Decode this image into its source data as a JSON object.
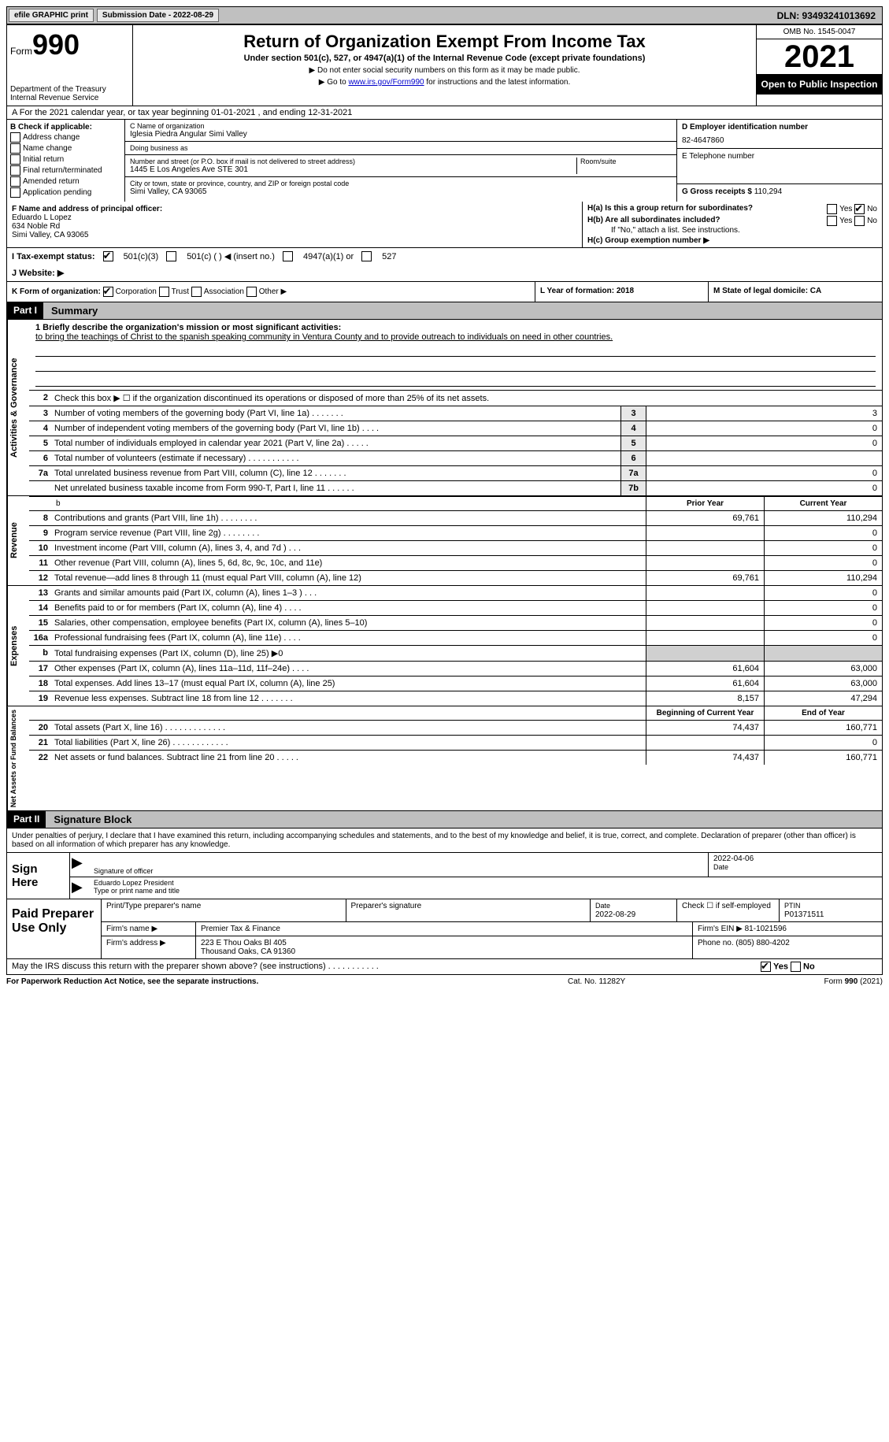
{
  "topbar": {
    "efile": "efile GRAPHIC print",
    "sub_date_label": "Submission Date - 2022-08-29",
    "dln": "DLN: 93493241013692"
  },
  "header": {
    "form_label": "Form",
    "form_no": "990",
    "dept": "Department of the Treasury Internal Revenue Service",
    "title": "Return of Organization Exempt From Income Tax",
    "subtitle": "Under section 501(c), 527, or 4947(a)(1) of the Internal Revenue Code (except private foundations)",
    "note1": "▶ Do not enter social security numbers on this form as it may be made public.",
    "note2_pre": "▶ Go to ",
    "note2_link": "www.irs.gov/Form990",
    "note2_post": " for instructions and the latest information.",
    "omb": "OMB No. 1545-0047",
    "year": "2021",
    "open": "Open to Public Inspection"
  },
  "rowA": "A For the 2021 calendar year, or tax year beginning 01-01-2021    , and ending 12-31-2021",
  "colB": {
    "title": "B Check if applicable:",
    "items": [
      "Address change",
      "Name change",
      "Initial return",
      "Final return/terminated",
      "Amended return",
      "Application pending"
    ]
  },
  "colC": {
    "name_label": "C Name of organization",
    "name": "Iglesia Piedra Angular Simi Valley",
    "dba_label": "Doing business as",
    "dba": "",
    "addr_label": "Number and street (or P.O. box if mail is not delivered to street address)",
    "room_label": "Room/suite",
    "addr": "1445 E Los Angeles Ave STE 301",
    "city_label": "City or town, state or province, country, and ZIP or foreign postal code",
    "city": "Simi Valley, CA  93065"
  },
  "colD": {
    "ein_label": "D Employer identification number",
    "ein": "82-4647860",
    "tel_label": "E Telephone number",
    "tel": "",
    "gross_label": "G Gross receipts $",
    "gross": "110,294"
  },
  "rowF": {
    "label": "F Name and address of principal officer:",
    "name": "Eduardo L Lopez",
    "addr1": "634 Noble Rd",
    "addr2": "Simi Valley, CA  93065",
    "ha": "H(a)  Is this a group return for subordinates?",
    "ha_yes": "Yes",
    "ha_no": "No",
    "hb": "H(b)  Are all subordinates included?",
    "hb_note": "If \"No,\" attach a list. See instructions.",
    "hc": "H(c)  Group exemption number ▶"
  },
  "rowI": {
    "label": "I  Tax-exempt status:",
    "opt1": "501(c)(3)",
    "opt2": "501(c) (  ) ◀ (insert no.)",
    "opt3": "4947(a)(1) or",
    "opt4": "527",
    "j": "J  Website: ▶"
  },
  "rowK": {
    "k": "K Form of organization:",
    "opts": [
      "Corporation",
      "Trust",
      "Association",
      "Other ▶"
    ],
    "l": "L Year of formation: 2018",
    "m": "M State of legal domicile: CA"
  },
  "parts": {
    "p1": "Part I",
    "p1_title": "Summary",
    "p2": "Part II",
    "p2_title": "Signature Block"
  },
  "briefly": {
    "label": "1  Briefly describe the organization's mission or most significant activities:",
    "text": "to bring the teachings of Christ to the spanish speaking community in Ventura County and to provide outreach to individuals on need in other countries."
  },
  "sections": {
    "ag": "Activities & Governance",
    "rev": "Revenue",
    "exp": "Expenses",
    "nab": "Net Assets or Fund Balances"
  },
  "ag_lines": [
    {
      "n": "2",
      "d": "Check this box ▶ ☐  if the organization discontinued its operations or disposed of more than 25% of its net assets."
    },
    {
      "n": "3",
      "d": "Number of voting members of the governing body (Part VI, line 1a)  .    .    .    .    .    .    .",
      "box": "3",
      "v": "3"
    },
    {
      "n": "4",
      "d": "Number of independent voting members of the governing body (Part VI, line 1b)   .    .    .    .",
      "box": "4",
      "v": "0"
    },
    {
      "n": "5",
      "d": "Total number of individuals employed in calendar year 2021 (Part V, line 2a)   .    .    .    .    .",
      "box": "5",
      "v": "0"
    },
    {
      "n": "6",
      "d": "Total number of volunteers (estimate if necessary)    .    .    .    .    .    .    .    .    .    .    .",
      "box": "6",
      "v": ""
    },
    {
      "n": "7a",
      "d": "Total unrelated business revenue from Part VIII, column (C), line 12   .    .    .    .    .    .    .",
      "box": "7a",
      "v": "0"
    },
    {
      "n": "",
      "d": "Net unrelated business taxable income from Form 990-T, Part I, line 11   .    .    .    .    .    .",
      "box": "7b",
      "v": "0"
    }
  ],
  "colhdr": {
    "py": "Prior Year",
    "cy": "Current Year"
  },
  "rev_lines": [
    {
      "n": "8",
      "d": "Contributions and grants (Part VIII, line 1h)   .    .    .    .    .    .    .    .",
      "py": "69,761",
      "cy": "110,294"
    },
    {
      "n": "9",
      "d": "Program service revenue (Part VIII, line 2g)   .    .    .    .    .    .    .    .",
      "py": "",
      "cy": "0"
    },
    {
      "n": "10",
      "d": "Investment income (Part VIII, column (A), lines 3, 4, and 7d )   .    .    .",
      "py": "",
      "cy": "0"
    },
    {
      "n": "11",
      "d": "Other revenue (Part VIII, column (A), lines 5, 6d, 8c, 9c, 10c, and 11e)",
      "py": "",
      "cy": "0"
    },
    {
      "n": "12",
      "d": "Total revenue—add lines 8 through 11 (must equal Part VIII, column (A), line 12)",
      "py": "69,761",
      "cy": "110,294"
    }
  ],
  "exp_lines": [
    {
      "n": "13",
      "d": "Grants and similar amounts paid (Part IX, column (A), lines 1–3 )   .    .    .",
      "py": "",
      "cy": "0"
    },
    {
      "n": "14",
      "d": "Benefits paid to or for members (Part IX, column (A), line 4)   .    .    .    .",
      "py": "",
      "cy": "0"
    },
    {
      "n": "15",
      "d": "Salaries, other compensation, employee benefits (Part IX, column (A), lines 5–10)",
      "py": "",
      "cy": "0"
    },
    {
      "n": "16a",
      "d": "Professional fundraising fees (Part IX, column (A), line 11e)   .    .    .    .",
      "py": "",
      "cy": "0"
    },
    {
      "n": "b",
      "d": "Total fundraising expenses (Part IX, column (D), line 25) ▶0",
      "gray": true
    },
    {
      "n": "17",
      "d": "Other expenses (Part IX, column (A), lines 11a–11d, 11f–24e)   .    .    .    .",
      "py": "61,604",
      "cy": "63,000"
    },
    {
      "n": "18",
      "d": "Total expenses. Add lines 13–17 (must equal Part IX, column (A), line 25)",
      "py": "61,604",
      "cy": "63,000"
    },
    {
      "n": "19",
      "d": "Revenue less expenses. Subtract line 18 from line 12   .    .    .    .    .    .    .",
      "py": "8,157",
      "cy": "47,294"
    }
  ],
  "colhdr2": {
    "py": "Beginning of Current Year",
    "cy": "End of Year"
  },
  "nab_lines": [
    {
      "n": "20",
      "d": "Total assets (Part X, line 16)   .    .    .    .    .    .    .    .    .    .    .    .    .",
      "py": "74,437",
      "cy": "160,771"
    },
    {
      "n": "21",
      "d": "Total liabilities (Part X, line 26)   .    .    .    .    .    .    .    .    .    .    .    .",
      "py": "",
      "cy": "0"
    },
    {
      "n": "22",
      "d": "Net assets or fund balances. Subtract line 21 from line 20   .    .    .    .    .",
      "py": "74,437",
      "cy": "160,771"
    }
  ],
  "sig": {
    "decl": "Under penalties of perjury, I declare that I have examined this return, including accompanying schedules and statements, and to the best of my knowledge and belief, it is true, correct, and complete. Declaration of preparer (other than officer) is based on all information of which preparer has any knowledge.",
    "sign_here": "Sign Here",
    "sig_label": "Signature of officer",
    "date_val": "2022-04-06",
    "date_label": "Date",
    "name_val": "Eduardo Lopez  President",
    "name_label": "Type or print name and title"
  },
  "paid": {
    "title": "Paid Preparer Use Only",
    "h1": "Print/Type preparer's name",
    "h2": "Preparer's signature",
    "h3_label": "Date",
    "h3_val": "2022-08-29",
    "h4_label": "Check ☐ if self-employed",
    "h5_label": "PTIN",
    "h5_val": "P01371511",
    "firm_label": "Firm's name    ▶",
    "firm_val": "Premier Tax & Finance",
    "ein_label": "Firm's EIN ▶",
    "ein_val": "81-1021596",
    "addr_label": "Firm's address ▶",
    "addr_val1": "223 E Thou Oaks Bl 405",
    "addr_val2": "Thousand Oaks, CA  91360",
    "phone_label": "Phone no.",
    "phone_val": "(805) 880-4202"
  },
  "discuss": {
    "q": "May the IRS discuss this return with the preparer shown above? (see instructions)    .    .    .    .    .    .    .    .    .    .    .",
    "yes": "Yes",
    "no": "No"
  },
  "footer": {
    "left": "For Paperwork Reduction Act Notice, see the separate instructions.",
    "mid": "Cat. No. 11282Y",
    "right": "Form 990 (2021)"
  }
}
